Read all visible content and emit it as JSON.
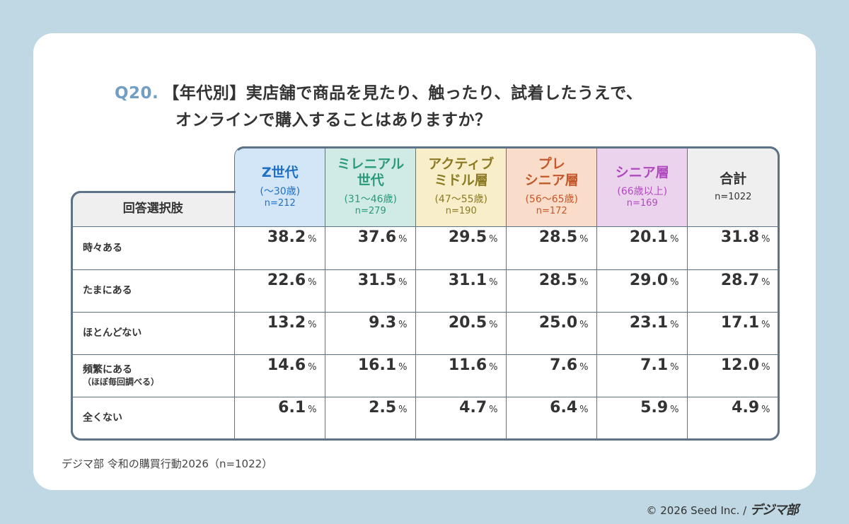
{
  "title": {
    "q": "Q20.",
    "line1": "【年代別】実店舗で商品を見たり、触ったり、試着したうえで、",
    "line2": "オンラインで購入することはありますか？"
  },
  "chart_data": {
    "type": "table",
    "row_header": "回答選択肢",
    "columns": [
      {
        "name": "Z世代",
        "age": "(〜30歳)",
        "n": "n=212",
        "bg": "#d3e6f8",
        "color": "#1e6fc6"
      },
      {
        "name": "ミレニアル\n世代",
        "age": "(31〜46歳)",
        "n": "n=279",
        "bg": "#d0eae5",
        "color": "#2b997d"
      },
      {
        "name": "アクティブ\nミドル層",
        "age": "(47〜55歳)",
        "n": "n=190",
        "bg": "#f8eec9",
        "color": "#8b7a22"
      },
      {
        "name": "プレ\nシニア層",
        "age": "(56〜65歳)",
        "n": "n=172",
        "bg": "#f9dcc9",
        "color": "#c4582a"
      },
      {
        "name": "シニア層",
        "age": "(66歳以上)",
        "n": "n=169",
        "bg": "#ecd3ed",
        "color": "#b04abf"
      },
      {
        "name": "合計",
        "age": "",
        "n": "n=1022",
        "bg": "#efefef",
        "color": "#333333"
      }
    ],
    "rows": [
      {
        "label": "時々ある",
        "sub": "",
        "values": [
          "38.2",
          "37.6",
          "29.5",
          "28.5",
          "20.1",
          "31.8"
        ]
      },
      {
        "label": "たまにある",
        "sub": "",
        "values": [
          "22.6",
          "31.5",
          "31.1",
          "28.5",
          "29.0",
          "28.7"
        ]
      },
      {
        "label": "ほとんどない",
        "sub": "",
        "values": [
          "13.2",
          "9.3",
          "20.5",
          "25.0",
          "23.1",
          "17.1"
        ]
      },
      {
        "label": "頻繁にある",
        "sub": "（ほぼ毎回調べる）",
        "values": [
          "14.6",
          "16.1",
          "11.6",
          "7.6",
          "7.1",
          "12.0"
        ]
      },
      {
        "label": "全くない",
        "sub": "",
        "values": [
          "6.1",
          "2.5",
          "4.7",
          "6.4",
          "5.9",
          "4.9"
        ]
      }
    ],
    "unit": "%"
  },
  "source": "デジマ部 令和の購買行動2026（n=1022）",
  "copyright": "© 2026 Seed Inc. /",
  "logo": "デジマ部"
}
